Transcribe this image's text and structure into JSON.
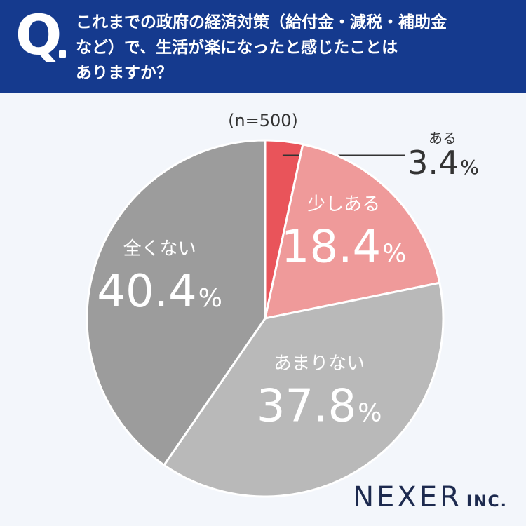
{
  "header": {
    "q_label": "Q",
    "question_lines": [
      "これまでの政府の経済対策（給付金・減税・補助金",
      "など）で、生活が楽になったと感じたことは",
      "ありますか？"
    ]
  },
  "sample_size": "(n=500)",
  "logo": {
    "name": "NEXER",
    "suffix": "INC."
  },
  "colors": {
    "header_bg": "#153a8e",
    "aru": "#e9545a",
    "sukoshi_aru": "#ef9a9a",
    "amari_nai": "#b9b9b9",
    "mattaku_nai": "#9c9c9c"
  },
  "chart_data": {
    "type": "pie",
    "unit": "%",
    "slices": [
      {
        "label": "ある",
        "value": 3.4,
        "value_text": "3.4",
        "color": "#e9545a"
      },
      {
        "label": "少しある",
        "value": 18.4,
        "value_text": "18.4",
        "color": "#ef9a9a"
      },
      {
        "label": "あまりない",
        "value": 37.8,
        "value_text": "37.8",
        "color": "#b9b9b9"
      },
      {
        "label": "全くない",
        "value": 40.4,
        "value_text": "40.4",
        "color": "#9c9c9c"
      }
    ]
  }
}
